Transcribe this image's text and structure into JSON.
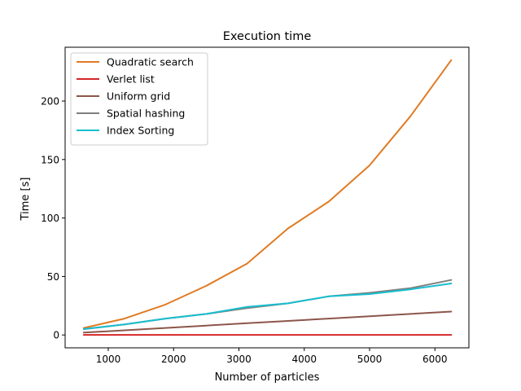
{
  "chart_data": {
    "type": "line",
    "title": "Execution time",
    "xlabel": "Number of particles",
    "ylabel": "Time [s]",
    "xlim": [
      340,
      6520
    ],
    "ylim": [
      -11,
      246
    ],
    "xticks": [
      1000,
      2000,
      3000,
      4000,
      5000,
      6000
    ],
    "yticks": [
      0,
      50,
      100,
      150,
      200
    ],
    "grid": false,
    "legend_position": "top-left",
    "x": [
      625,
      1250,
      1875,
      2500,
      3125,
      3750,
      4375,
      5000,
      5625,
      6250
    ],
    "series": [
      {
        "name": "Quadratic search",
        "color": "#e07b24",
        "values": [
          6,
          14,
          26,
          42,
          61,
          91,
          114,
          145,
          187,
          235
        ]
      },
      {
        "name": "Verlet list",
        "color": "#d62728",
        "values": [
          0.1,
          0.1,
          0.1,
          0.1,
          0.1,
          0.1,
          0.1,
          0.1,
          0.1,
          0.1
        ]
      },
      {
        "name": "Uniform grid",
        "color": "#8c564b",
        "values": [
          2,
          4,
          6,
          8,
          10,
          12,
          14,
          16,
          18,
          20
        ]
      },
      {
        "name": "Spatial hashing",
        "color": "#7f7f7f",
        "values": [
          5,
          9,
          14,
          18,
          23,
          27,
          33,
          36,
          40,
          47
        ]
      },
      {
        "name": "Index Sorting",
        "color": "#17becf",
        "values": [
          5,
          9,
          14,
          18,
          24,
          27,
          33,
          35,
          39,
          44
        ]
      }
    ]
  }
}
